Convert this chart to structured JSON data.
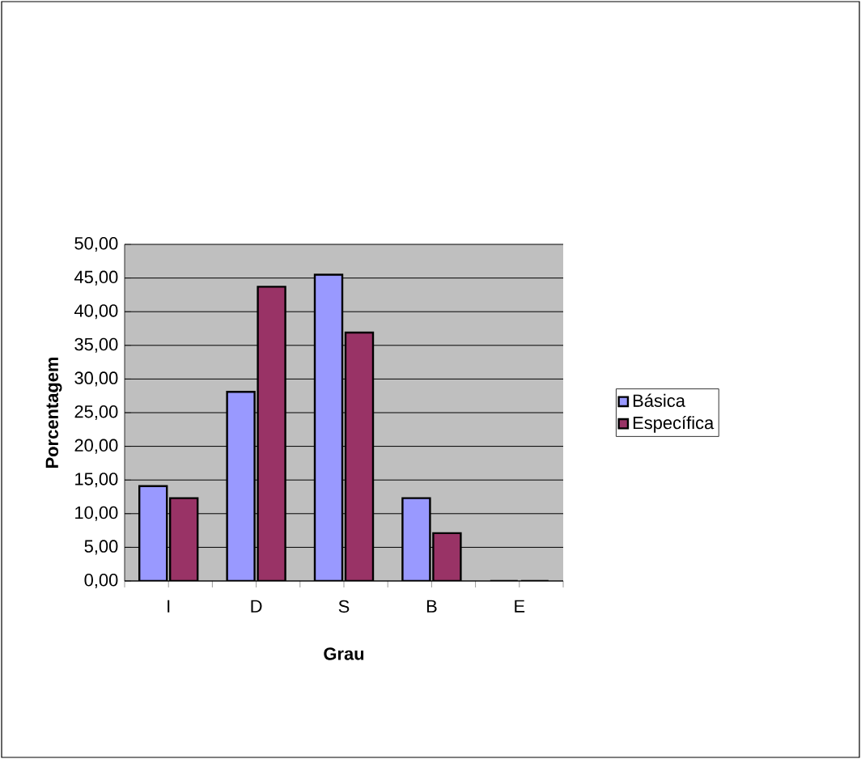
{
  "chart_data": {
    "type": "bar",
    "xlabel": "Grau",
    "ylabel": "Porcentagem",
    "categories": [
      "I",
      "D",
      "S",
      "B",
      "E"
    ],
    "series": [
      {
        "name": "Básica",
        "color": "#9999ff",
        "values": [
          14.1,
          28.1,
          45.5,
          12.3,
          0
        ]
      },
      {
        "name": "Específica",
        "color": "#993366",
        "values": [
          12.3,
          43.7,
          36.9,
          7.1,
          0
        ]
      }
    ],
    "ylim": [
      0,
      50
    ],
    "yticks": [
      {
        "value": 0,
        "label": "0,00"
      },
      {
        "value": 5,
        "label": "5,00"
      },
      {
        "value": 10,
        "label": "10,00"
      },
      {
        "value": 15,
        "label": "15,00"
      },
      {
        "value": 20,
        "label": "20,00"
      },
      {
        "value": 25,
        "label": "25,00"
      },
      {
        "value": 30,
        "label": "30,00"
      },
      {
        "value": 35,
        "label": "35,00"
      },
      {
        "value": 40,
        "label": "40,00"
      },
      {
        "value": 45,
        "label": "45,00"
      },
      {
        "value": 50,
        "label": "50,00"
      }
    ],
    "grid": "y",
    "legend": "right"
  }
}
